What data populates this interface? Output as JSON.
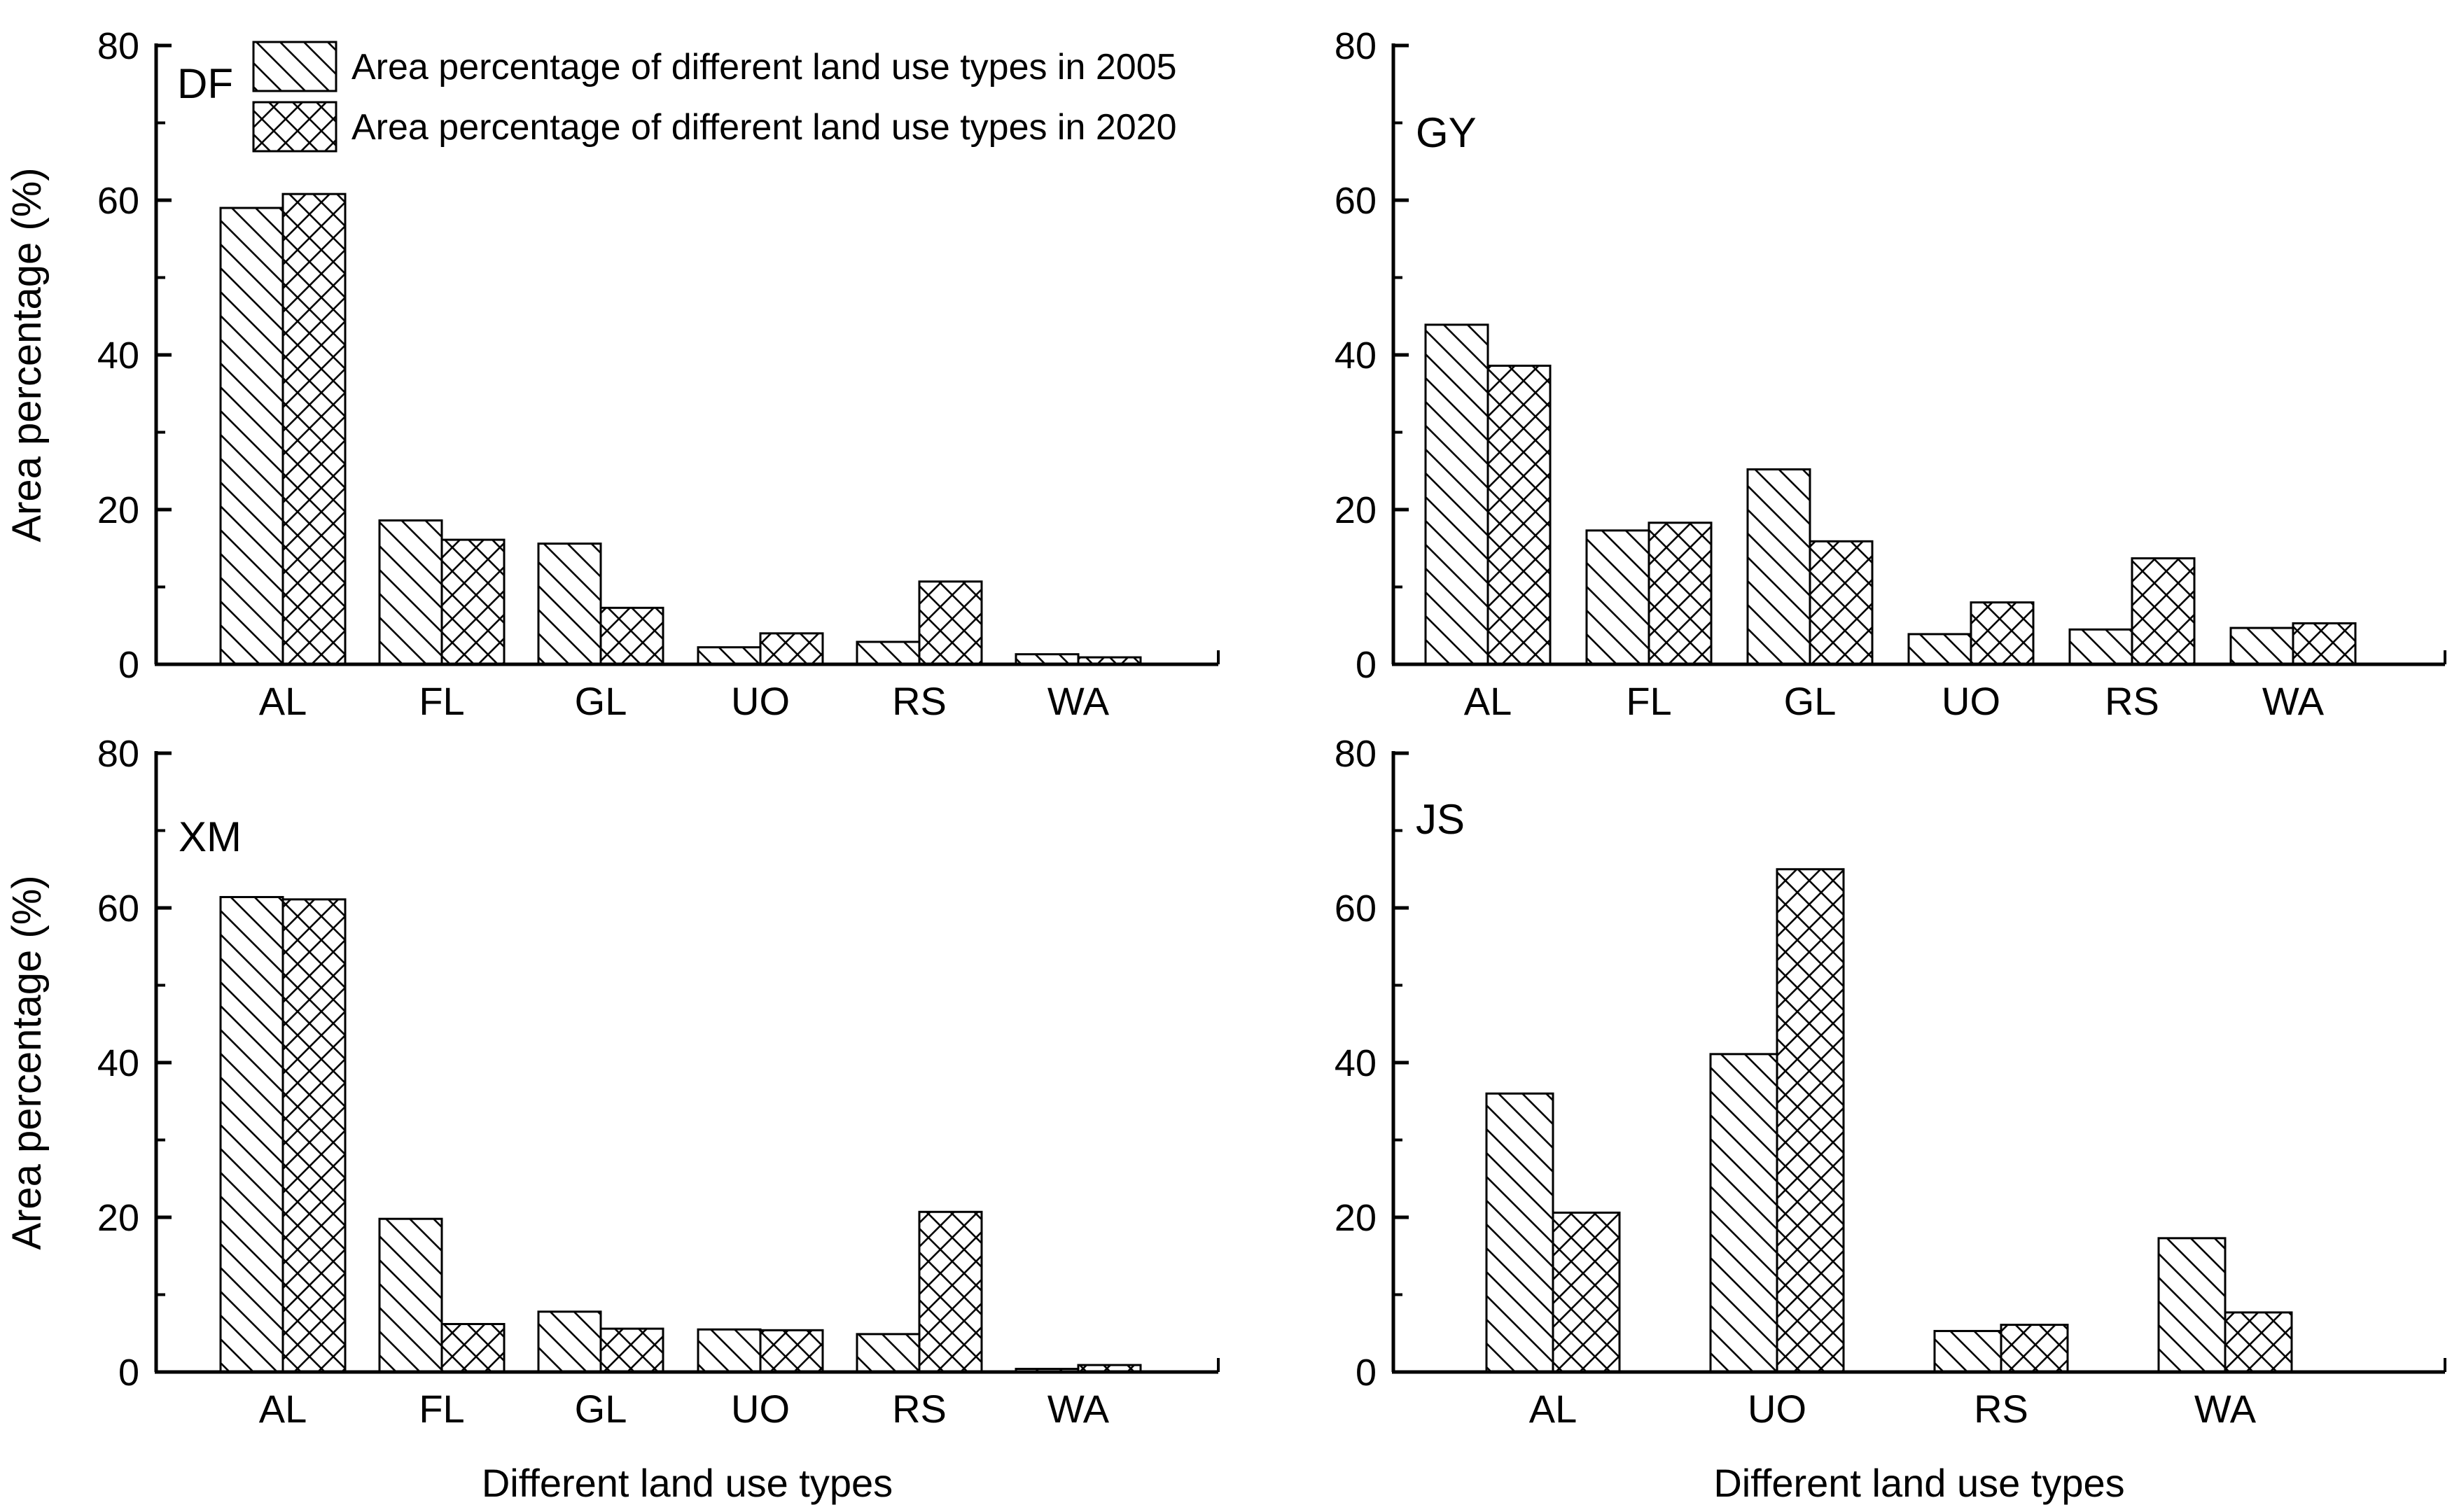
{
  "figure": {
    "background": "#ffffff",
    "ink": "#000000",
    "ylabel": "Area percentage (%)",
    "xlabel": "Different land use types",
    "legend": [
      {
        "label": "Area percentage of different land use types in 2005",
        "series": "2005",
        "hatch": "diagonal-backslash"
      },
      {
        "label": "Area percentage of different land use types in 2020",
        "series": "2020",
        "hatch": "cross"
      }
    ]
  },
  "chart_data": {
    "type": "bar",
    "title": "",
    "ylabel": "Area percentage (%)",
    "xlabel": "Different land use types",
    "ylim": [
      0,
      80
    ],
    "yticks_major": [
      0,
      20,
      40,
      60,
      80
    ],
    "yticks_minor": [
      10,
      30,
      50,
      70
    ],
    "grid": false,
    "legend_position": "inside top-left of DF panel",
    "series_names": [
      "Area percentage of different land use types in 2005",
      "Area percentage of different land use types in 2020"
    ],
    "hatches": [
      "diagonal-backslash",
      "cross"
    ],
    "panels": [
      {
        "label": "DF",
        "categories": [
          "AL",
          "FL",
          "GL",
          "UO",
          "RS",
          "WA"
        ],
        "series": [
          {
            "name": "2005",
            "values": [
              59.0,
              18.6,
              15.6,
              2.2,
              2.9,
              1.3
            ]
          },
          {
            "name": "2020",
            "values": [
              60.8,
              16.1,
              7.3,
              4.0,
              10.7,
              0.9
            ]
          }
        ]
      },
      {
        "label": "GY",
        "categories": [
          "AL",
          "FL",
          "GL",
          "UO",
          "RS",
          "WA"
        ],
        "series": [
          {
            "name": "2005",
            "values": [
              43.9,
              17.3,
              25.2,
              3.9,
              4.5,
              4.7
            ]
          },
          {
            "name": "2020",
            "values": [
              38.6,
              18.3,
              15.9,
              8.0,
              13.7,
              5.3
            ]
          }
        ]
      },
      {
        "label": "XM",
        "categories": [
          "AL",
          "FL",
          "GL",
          "UO",
          "RS",
          "WA"
        ],
        "series": [
          {
            "name": "2005",
            "values": [
              61.4,
              19.8,
              7.8,
              5.5,
              4.9,
              0.4
            ]
          },
          {
            "name": "2020",
            "values": [
              61.1,
              6.2,
              5.6,
              5.4,
              20.7,
              0.9
            ]
          }
        ]
      },
      {
        "label": "JS",
        "categories": [
          "AL",
          "UO",
          "RS",
          "WA"
        ],
        "series": [
          {
            "name": "2005",
            "values": [
              36.0,
              41.1,
              5.3,
              17.3
            ]
          },
          {
            "name": "2020",
            "values": [
              20.6,
              65.0,
              6.1,
              7.7
            ]
          }
        ]
      }
    ]
  }
}
